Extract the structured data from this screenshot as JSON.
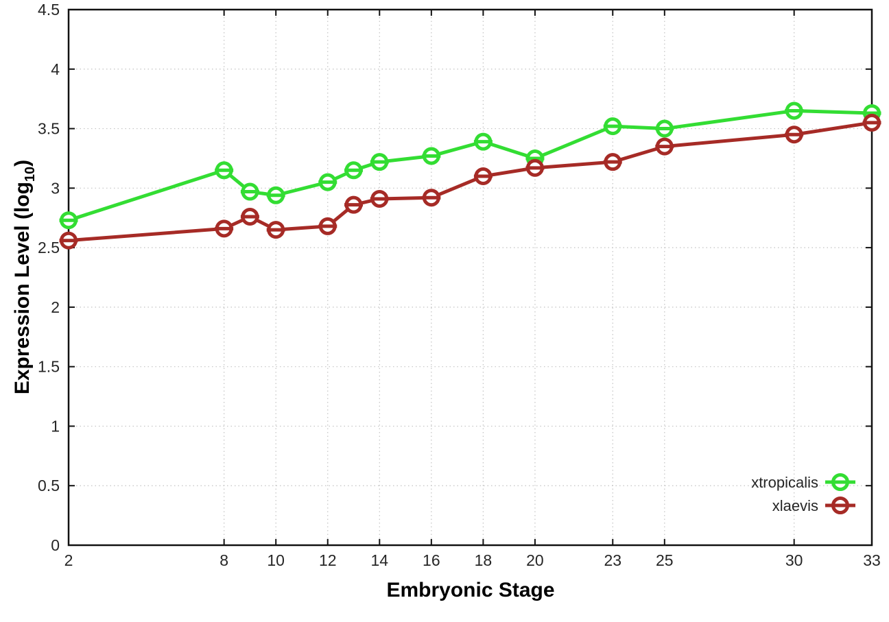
{
  "chart_data": {
    "type": "line",
    "title": "",
    "xlabel": "Embryonic Stage",
    "ylabel": "Expression Level (log10)",
    "ylabel_parts": {
      "main": "Expression Level (log",
      "sub": "10",
      "end": ")"
    },
    "x": [
      2,
      8,
      9,
      10,
      12,
      13,
      14,
      16,
      18,
      20,
      23,
      25,
      30,
      33
    ],
    "series": [
      {
        "name": "xtropicalis",
        "color": "#33dd33",
        "values": [
          2.73,
          3.15,
          2.97,
          2.94,
          3.05,
          3.15,
          3.22,
          3.27,
          3.39,
          3.25,
          3.52,
          3.5,
          3.65,
          3.63
        ]
      },
      {
        "name": "xlaevis",
        "color": "#a62b26",
        "values": [
          2.56,
          2.66,
          2.76,
          2.65,
          2.68,
          2.86,
          2.91,
          2.92,
          3.1,
          3.17,
          3.22,
          3.35,
          3.45,
          3.55
        ]
      }
    ],
    "xticks": [
      2,
      8,
      10,
      12,
      14,
      16,
      18,
      20,
      23,
      25,
      30,
      33
    ],
    "yticks": [
      0,
      0.5,
      1,
      1.5,
      2,
      2.5,
      3,
      3.5,
      4,
      4.5
    ],
    "xlim": [
      2,
      33
    ],
    "ylim": [
      0,
      4.5
    ],
    "grid": true,
    "grid_style": "dotted",
    "grid_color": "#c2c2c2",
    "axis_color": "#111111",
    "background": "#ffffff",
    "marker": "open-circle-with-errorbar-cap",
    "legend_position": "bottom-right",
    "legend_entries": [
      "xtropicalis",
      "xlaevis"
    ]
  }
}
